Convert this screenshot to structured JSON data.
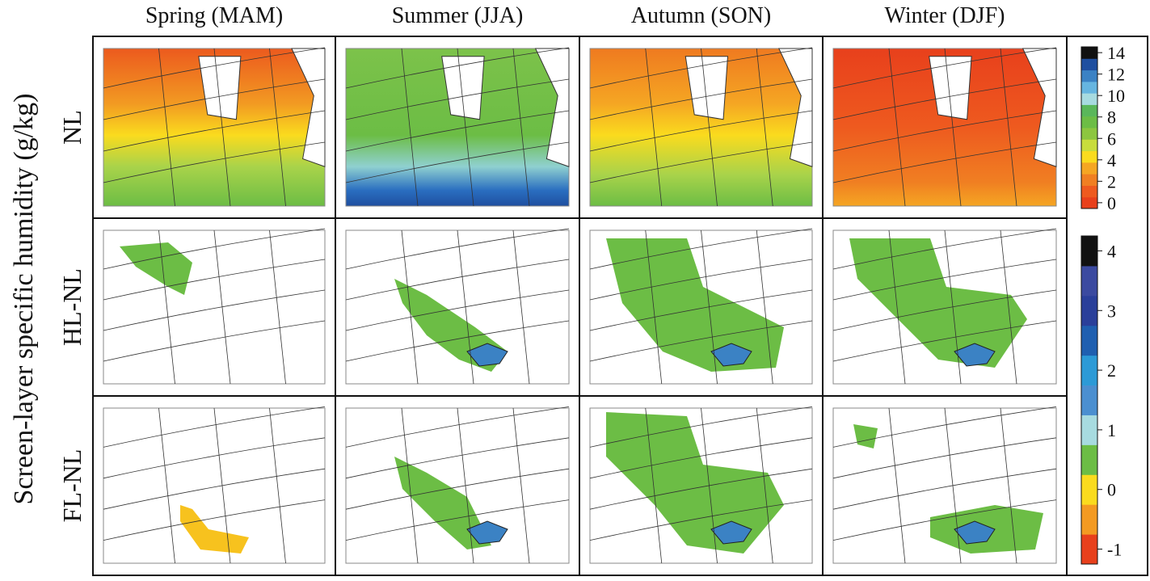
{
  "y_axis_label": "Screen-layer specific humidity (g/kg)",
  "columns": [
    "Spring (MAM)",
    "Summer (JJA)",
    "Autumn (SON)",
    "Winter (DJF)"
  ],
  "rows": [
    "NL",
    "HL-NL",
    "FL-NL"
  ],
  "colorbars": [
    {
      "ticks": [
        0,
        2,
        4,
        6,
        8,
        10,
        12,
        14
      ],
      "colors": [
        "#e8401c",
        "#ee5a1f",
        "#f07f22",
        "#f5a623",
        "#fadb1e",
        "#c8dc3c",
        "#8cc63f",
        "#6cbd45",
        "#5ab75a",
        "#a7dbe0",
        "#66b5e0",
        "#3b82c4",
        "#1f4fa0",
        "#111111"
      ]
    },
    {
      "ticks": [
        -1,
        0,
        1,
        2,
        3,
        4
      ],
      "colors": [
        "#e8401c",
        "#f39a22",
        "#fadb1e",
        "#6cbd45",
        "#a7dbe0",
        "#4b8fd0",
        "#2c9ad6",
        "#1f5fb0",
        "#2a3f9a",
        "#3b4aa0",
        "#111111"
      ]
    }
  ]
}
